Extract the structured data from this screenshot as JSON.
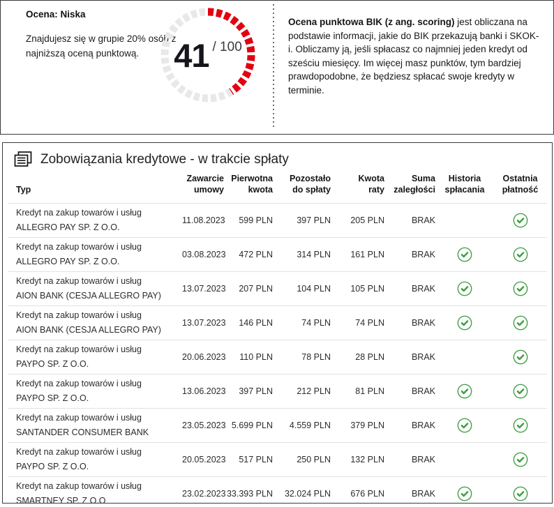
{
  "score": {
    "rating_label": "Ocena: Niska",
    "group_text": "Znajdujesz się w grupie 20% osób z najniższą oceną punktową.",
    "value": "41",
    "max": 100,
    "max_label": "/ 100",
    "gauge_segments": 32,
    "description_bold": "Ocena punktowa BIK (z ang. scoring)",
    "description_rest": " jest obliczana na podstawie informacji, jakie do BIK przekazują banki i SKOK-i. Obliczamy ją, jeśli spłacasz co najmniej jeden kredyt od sześciu miesięcy. Im więcej masz punktów, tym bardziej prawdopodobne, że będziesz spłacać swoje kredyty w terminie.",
    "colors": {
      "red": "#e3000f",
      "track": "#e8e8e8"
    }
  },
  "table": {
    "title": "Zobowiązania kredytowe - w trakcie spłaty",
    "columns": [
      "Typ",
      "Zawarcie\numowy",
      "Pierwotna\nkwota",
      "Pozostało\ndo spłaty",
      "Kwota\nraty",
      "Suma\nzaległości",
      "Historia\nspłacania",
      "Ostatnia\npłatność"
    ],
    "colors": {
      "green": "#43a047"
    },
    "rows": [
      {
        "type_line1": "Kredyt na zakup towarów i usług",
        "type_line2": "ALLEGRO PAY SP. Z O.O.",
        "date": "11.08.2023",
        "original": "599 PLN",
        "remaining": "397 PLN",
        "installment": "205 PLN",
        "arrears": "BRAK",
        "history_ok": false,
        "last_payment_ok": true
      },
      {
        "type_line1": "Kredyt na zakup towarów i usług",
        "type_line2": "ALLEGRO PAY SP. Z O.O.",
        "date": "03.08.2023",
        "original": "472 PLN",
        "remaining": "314 PLN",
        "installment": "161 PLN",
        "arrears": "BRAK",
        "history_ok": true,
        "last_payment_ok": true
      },
      {
        "type_line1": "Kredyt na zakup towarów i usług",
        "type_line2": "AION BANK (CESJA ALLEGRO PAY)",
        "date": "13.07.2023",
        "original": "207 PLN",
        "remaining": "104 PLN",
        "installment": "105 PLN",
        "arrears": "BRAK",
        "history_ok": true,
        "last_payment_ok": true
      },
      {
        "type_line1": "Kredyt na zakup towarów i usług",
        "type_line2": "AION BANK (CESJA ALLEGRO PAY)",
        "date": "13.07.2023",
        "original": "146 PLN",
        "remaining": "74 PLN",
        "installment": "74 PLN",
        "arrears": "BRAK",
        "history_ok": true,
        "last_payment_ok": true
      },
      {
        "type_line1": "Kredyt na zakup towarów i usług",
        "type_line2": "PAYPO SP. Z O.O.",
        "date": "20.06.2023",
        "original": "110 PLN",
        "remaining": "78 PLN",
        "installment": "28 PLN",
        "arrears": "BRAK",
        "history_ok": false,
        "last_payment_ok": true
      },
      {
        "type_line1": "Kredyt na zakup towarów i usług",
        "type_line2": "PAYPO SP. Z O.O.",
        "date": "13.06.2023",
        "original": "397 PLN",
        "remaining": "212 PLN",
        "installment": "81 PLN",
        "arrears": "BRAK",
        "history_ok": true,
        "last_payment_ok": true
      },
      {
        "type_line1": "Kredyt na zakup towarów i usług",
        "type_line2": "SANTANDER CONSUMER BANK",
        "date": "23.05.2023",
        "original": "5.699 PLN",
        "remaining": "4.559 PLN",
        "installment": "379 PLN",
        "arrears": "BRAK",
        "history_ok": true,
        "last_payment_ok": true
      },
      {
        "type_line1": "Kredyt na zakup towarów i usług",
        "type_line2": "PAYPO SP. Z O.O.",
        "date": "20.05.2023",
        "original": "517 PLN",
        "remaining": "250 PLN",
        "installment": "132 PLN",
        "arrears": "BRAK",
        "history_ok": false,
        "last_payment_ok": true
      },
      {
        "type_line1": "Kredyt na zakup towarów i usług",
        "type_line2": "SMARTNEY SP. Z O.O",
        "date": "23.02.2023",
        "original": "33.393 PLN",
        "remaining": "32.024 PLN",
        "installment": "676 PLN",
        "arrears": "BRAK",
        "history_ok": true,
        "last_payment_ok": true
      }
    ]
  }
}
